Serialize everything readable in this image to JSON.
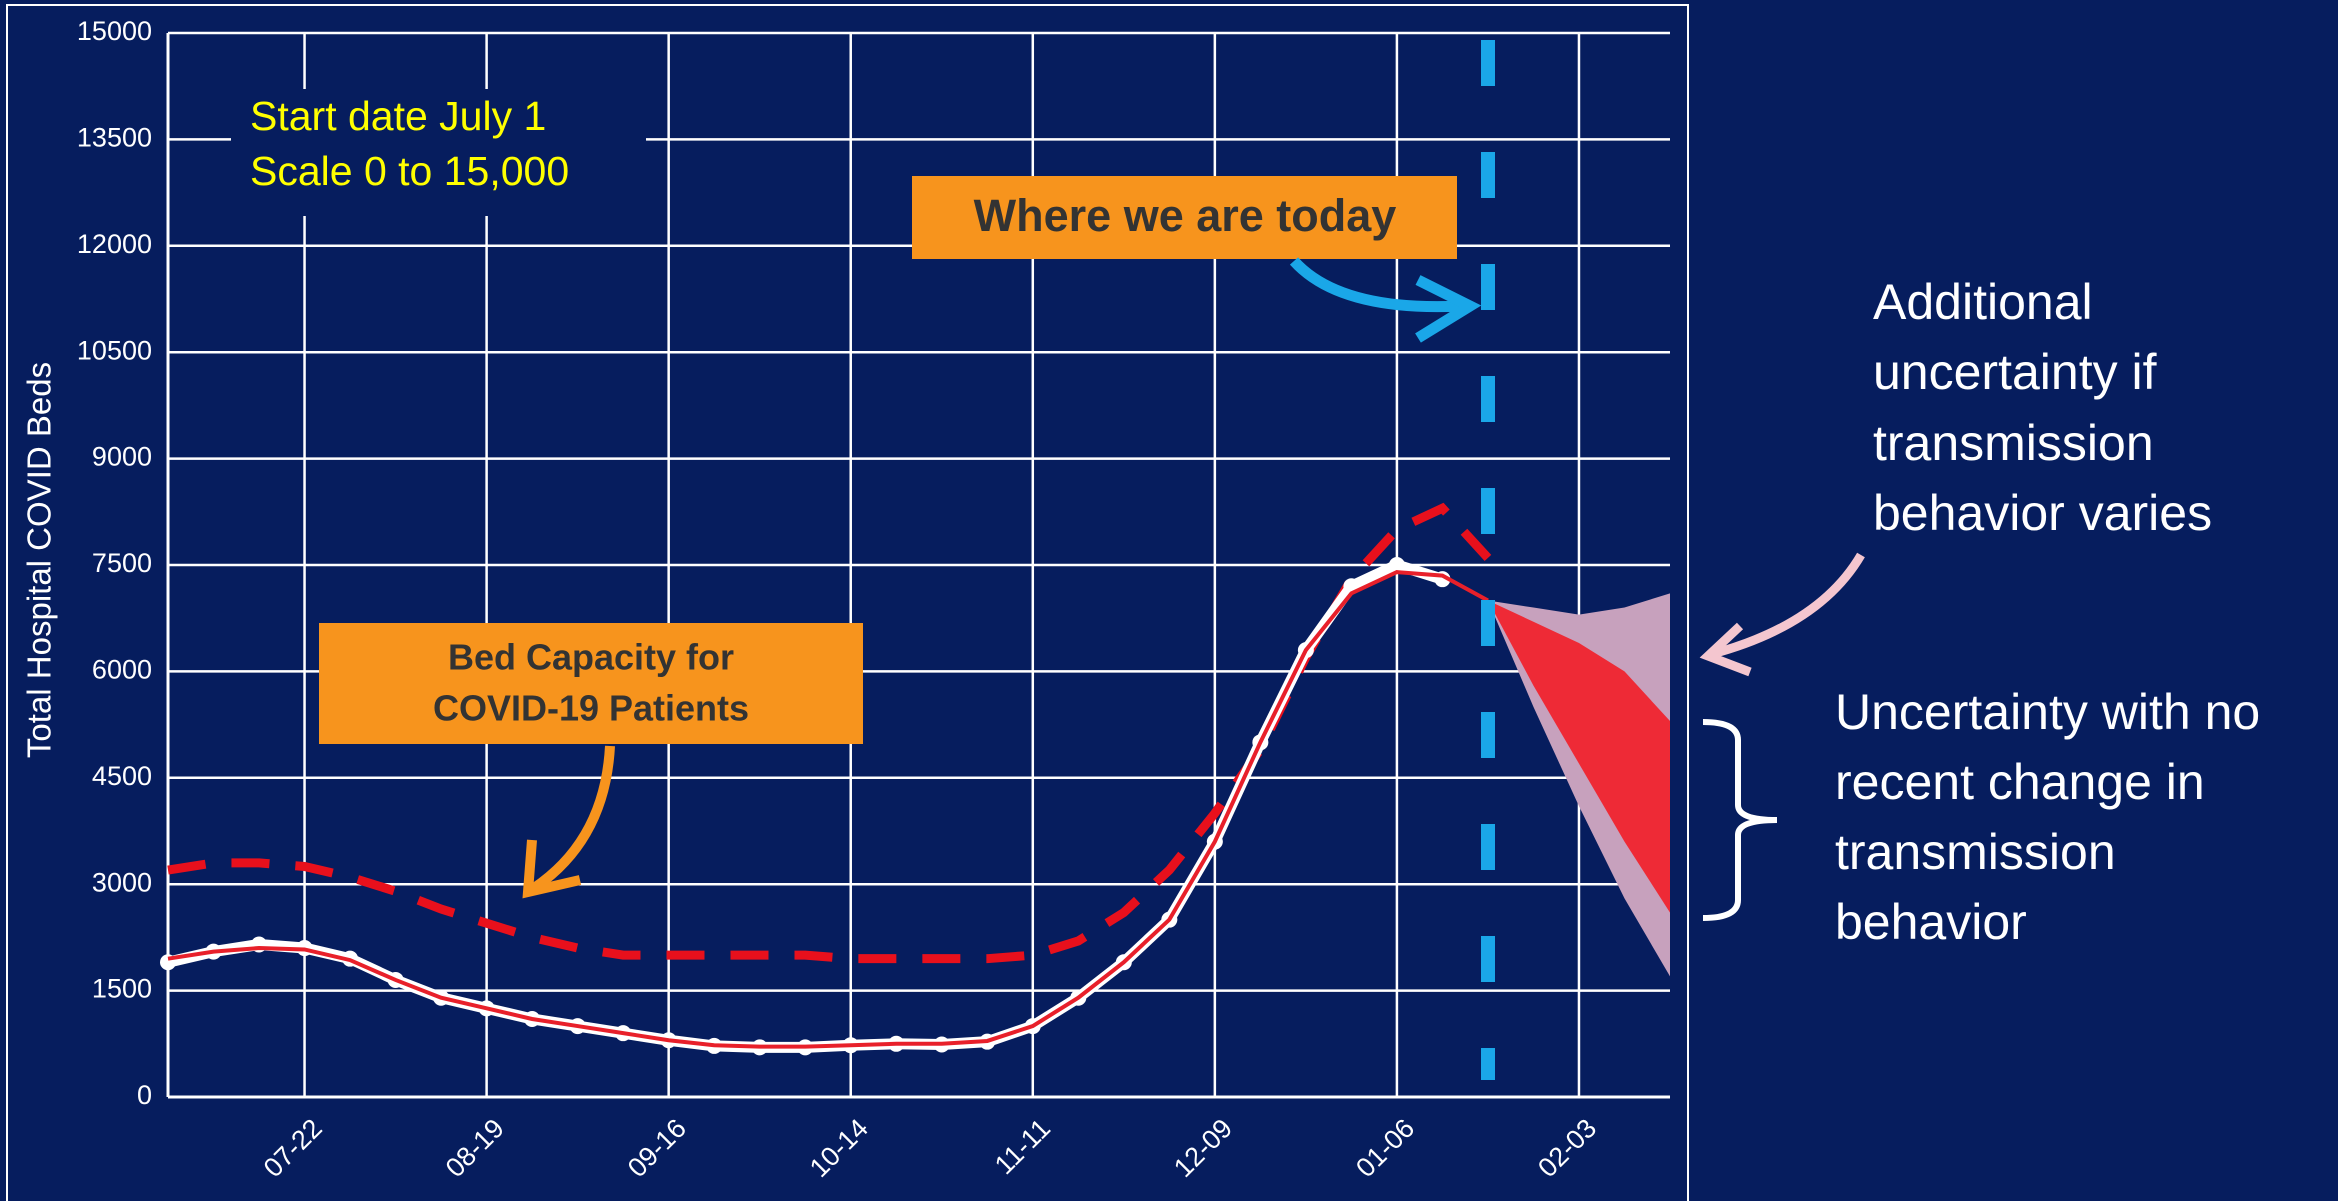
{
  "chart_data": {
    "type": "line",
    "y_axis_label": "Total Hospital COVID Beds",
    "categories": [
      null,
      null,
      null,
      "07-22",
      null,
      null,
      null,
      "08-19",
      null,
      null,
      null,
      "09-16",
      null,
      null,
      null,
      "10-14",
      null,
      null,
      null,
      "11-11",
      null,
      null,
      null,
      "12-09",
      null,
      null,
      null,
      "01-06",
      null,
      null,
      null,
      "02-03",
      null,
      null
    ],
    "ylim": [
      0,
      15000
    ],
    "yticks": [
      0,
      1500,
      3000,
      4500,
      6000,
      7500,
      9000,
      10500,
      12000,
      13500,
      15000
    ],
    "grid": true,
    "bands": [
      {
        "color": "#c7a1bd",
        "low": [
          null,
          null,
          null,
          null,
          null,
          null,
          null,
          null,
          null,
          null,
          null,
          null,
          null,
          null,
          null,
          null,
          null,
          null,
          null,
          null,
          null,
          null,
          null,
          null,
          null,
          null,
          null,
          null,
          null,
          7000,
          5500,
          4100,
          2800,
          1700
        ],
        "high": [
          null,
          null,
          null,
          null,
          null,
          null,
          null,
          null,
          null,
          null,
          null,
          null,
          null,
          null,
          null,
          null,
          null,
          null,
          null,
          null,
          null,
          null,
          null,
          null,
          null,
          null,
          null,
          null,
          null,
          7000,
          6900,
          6800,
          6900,
          7100
        ]
      },
      {
        "color": "#ee2a36",
        "low": [
          null,
          null,
          null,
          null,
          null,
          null,
          null,
          null,
          null,
          null,
          null,
          null,
          null,
          null,
          null,
          null,
          null,
          null,
          null,
          null,
          null,
          null,
          null,
          null,
          null,
          null,
          null,
          null,
          null,
          7000,
          5800,
          4700,
          3600,
          2600
        ],
        "high": [
          null,
          null,
          null,
          null,
          null,
          null,
          null,
          null,
          null,
          null,
          null,
          null,
          null,
          null,
          null,
          null,
          null,
          null,
          null,
          null,
          null,
          null,
          null,
          null,
          null,
          null,
          null,
          null,
          null,
          7000,
          6700,
          6400,
          6000,
          5300
        ]
      }
    ],
    "series": [
      {
        "style": "dashed",
        "color": "#e8101c",
        "values": [
          3200,
          3300,
          3300,
          3250,
          3100,
          2900,
          2650,
          2450,
          2250,
          2100,
          2000,
          2000,
          2000,
          2000,
          2000,
          1950,
          1950,
          1950,
          1950,
          2000,
          2200,
          2600,
          3200,
          4000,
          4900,
          6200,
          7300,
          8000,
          8300,
          7600,
          null,
          null,
          null,
          null
        ]
      },
      {
        "style": "dots",
        "color": "#ffffff",
        "values": [
          1900,
          2050,
          2150,
          2100,
          1950,
          1650,
          1400,
          1250,
          1100,
          1000,
          900,
          800,
          720,
          700,
          700,
          730,
          750,
          740,
          780,
          1000,
          1400,
          1900,
          2500,
          3600,
          5000,
          6300,
          7200,
          7500,
          7300,
          null,
          null,
          null,
          null,
          null
        ]
      },
      {
        "style": "line",
        "color": "#e8202a",
        "values": [
          1950,
          2050,
          2100,
          2080,
          1930,
          1650,
          1400,
          1250,
          1100,
          1000,
          900,
          800,
          730,
          710,
          710,
          730,
          750,
          750,
          790,
          1000,
          1400,
          1900,
          2500,
          3600,
          5000,
          6300,
          7100,
          7400,
          7350,
          7000,
          null,
          null,
          null,
          null
        ]
      }
    ],
    "annotations": {
      "start_note": [
        "Start date July 1",
        "Scale 0 to 15,000"
      ],
      "today_label": "Where we are today",
      "capacity_label": [
        "Bed Capacity for",
        "COVID-19 Patients"
      ],
      "additional_note": [
        "Additional",
        "uncertainty if",
        "transmission",
        "behavior varies"
      ],
      "uncertainty_note": [
        "Uncertainty with no",
        "recent change in",
        "transmission",
        "behavior"
      ]
    }
  }
}
